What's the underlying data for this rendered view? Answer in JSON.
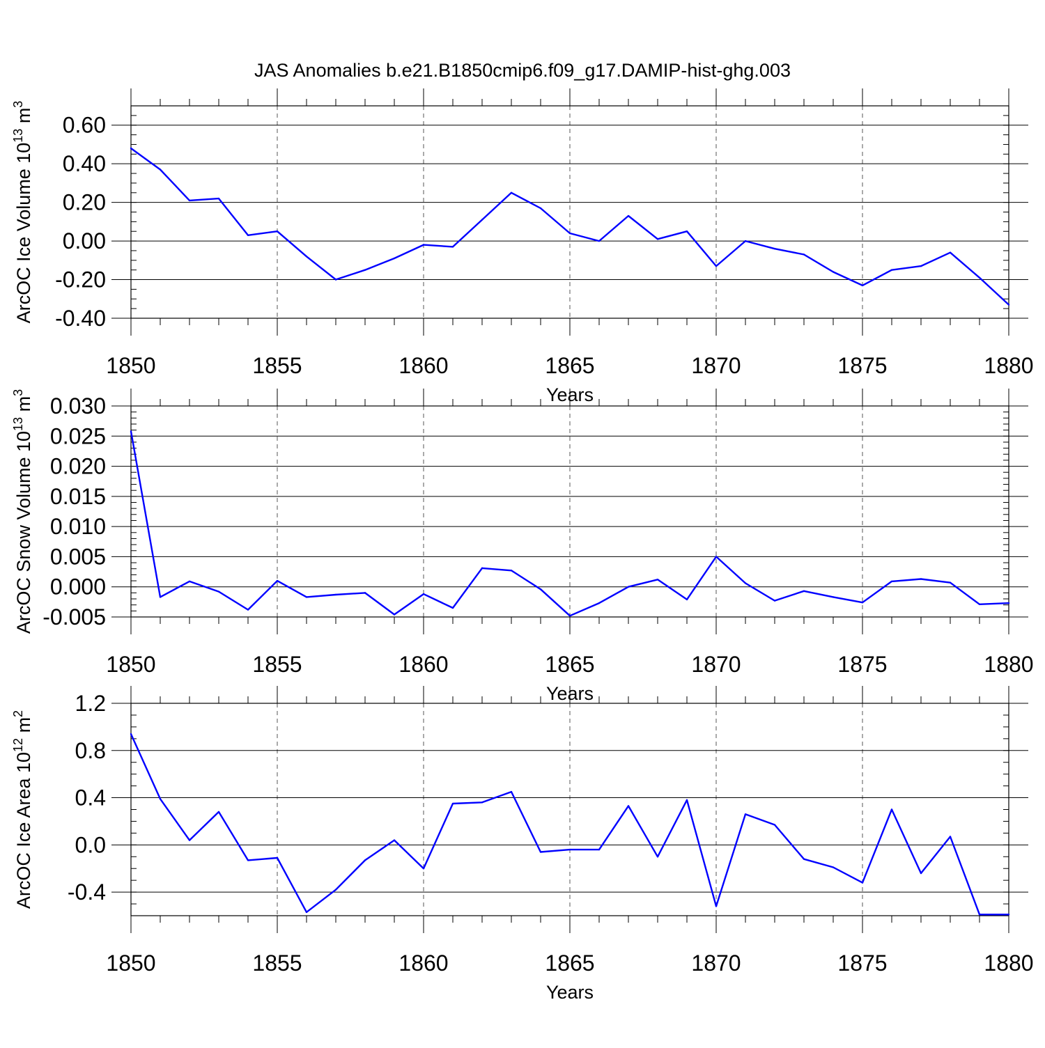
{
  "title": "JAS Anomalies b.e21.B1850cmip6.f09_g17.DAMIP-hist-ghg.003",
  "chart_data": [
    {
      "type": "line",
      "id": "ice-volume",
      "ylabel_main": "ArcOC Ice Volume 10",
      "ylabel_exp": "13",
      "ylabel_unit": " m",
      "ylabel_unit_exp": "3",
      "xlabel": "Years",
      "xlim": [
        1850,
        1880
      ],
      "ylim": [
        -0.4,
        0.7
      ],
      "x_ticks": [
        1850,
        1855,
        1860,
        1865,
        1870,
        1875,
        1880
      ],
      "x_tick_labels": [
        "1850",
        "1855",
        "1860",
        "1865",
        "1870",
        "1875",
        "1880"
      ],
      "y_ticks": [
        -0.4,
        -0.2,
        0.0,
        0.2,
        0.4,
        0.6
      ],
      "y_tick_labels": [
        "-0.40",
        "-0.20",
        "0.00",
        "0.20",
        "0.40",
        "0.60"
      ],
      "y_minor_step": 0.05,
      "color": "#0000ff",
      "x": [
        1850,
        1851,
        1852,
        1853,
        1854,
        1855,
        1856,
        1857,
        1858,
        1859,
        1860,
        1861,
        1862,
        1863,
        1864,
        1865,
        1866,
        1867,
        1868,
        1869,
        1870,
        1871,
        1872,
        1873,
        1874,
        1875,
        1876,
        1877,
        1878,
        1879,
        1880
      ],
      "values": [
        0.48,
        0.37,
        0.21,
        0.22,
        0.03,
        0.05,
        -0.08,
        -0.2,
        -0.15,
        -0.09,
        -0.02,
        -0.03,
        0.11,
        0.25,
        0.17,
        0.04,
        0.0,
        0.13,
        0.01,
        0.05,
        -0.13,
        0.0,
        -0.04,
        -0.07,
        -0.16,
        -0.23,
        -0.15,
        -0.13,
        -0.06,
        -0.19,
        -0.33
      ]
    },
    {
      "type": "line",
      "id": "snow-volume",
      "ylabel_main": "ArcOC Snow Volume 10",
      "ylabel_exp": "13",
      "ylabel_unit": " m",
      "ylabel_unit_exp": "3",
      "xlabel": "Years",
      "xlim": [
        1850,
        1880
      ],
      "ylim": [
        -0.005,
        0.03
      ],
      "x_ticks": [
        1850,
        1855,
        1860,
        1865,
        1870,
        1875,
        1880
      ],
      "x_tick_labels": [
        "1850",
        "1855",
        "1860",
        "1865",
        "1870",
        "1875",
        "1880"
      ],
      "y_ticks": [
        -0.005,
        0.0,
        0.005,
        0.01,
        0.015,
        0.02,
        0.025,
        0.03
      ],
      "y_tick_labels": [
        "-0.005",
        "0.000",
        "0.005",
        "0.010",
        "0.015",
        "0.020",
        "0.025",
        "0.030"
      ],
      "y_minor_step": 0.001,
      "color": "#0000ff",
      "x": [
        1850,
        1851,
        1852,
        1853,
        1854,
        1855,
        1856,
        1857,
        1858,
        1859,
        1860,
        1861,
        1862,
        1863,
        1864,
        1865,
        1866,
        1867,
        1868,
        1869,
        1870,
        1871,
        1872,
        1873,
        1874,
        1875,
        1876,
        1877,
        1878,
        1879,
        1880
      ],
      "values": [
        0.0258,
        -0.0017,
        0.0009,
        -0.0008,
        -0.0038,
        0.001,
        -0.0017,
        -0.0013,
        -0.001,
        -0.0046,
        -0.0012,
        -0.0035,
        0.0031,
        0.0027,
        -0.0004,
        -0.0048,
        -0.0027,
        0.0,
        0.0012,
        -0.0021,
        0.005,
        0.0006,
        -0.0023,
        -0.0007,
        -0.0017,
        -0.0026,
        0.0009,
        0.0013,
        0.0007,
        -0.0029,
        -0.0027
      ]
    },
    {
      "type": "line",
      "id": "ice-area",
      "ylabel_main": "ArcOC Ice Area 10",
      "ylabel_exp": "12",
      "ylabel_unit": " m",
      "ylabel_unit_exp": "2",
      "xlabel": "Years",
      "xlim": [
        1850,
        1880
      ],
      "ylim": [
        -0.6,
        1.2
      ],
      "x_ticks": [
        1850,
        1855,
        1860,
        1865,
        1870,
        1875,
        1880
      ],
      "x_tick_labels": [
        "1850",
        "1855",
        "1860",
        "1865",
        "1870",
        "1875",
        "1880"
      ],
      "y_ticks": [
        -0.4,
        0.0,
        0.4,
        0.8,
        1.2
      ],
      "y_tick_labels": [
        "-0.4",
        "0.0",
        "0.4",
        "0.8",
        "1.2"
      ],
      "y_minor_step": 0.1,
      "color": "#0000ff",
      "x": [
        1850,
        1851,
        1852,
        1853,
        1854,
        1855,
        1856,
        1857,
        1858,
        1859,
        1860,
        1861,
        1862,
        1863,
        1864,
        1865,
        1866,
        1867,
        1868,
        1869,
        1870,
        1871,
        1872,
        1873,
        1874,
        1875,
        1876,
        1877,
        1878,
        1879,
        1880
      ],
      "values": [
        0.94,
        0.39,
        0.04,
        0.28,
        -0.13,
        -0.11,
        -0.57,
        -0.38,
        -0.13,
        0.04,
        -0.2,
        0.35,
        0.36,
        0.45,
        -0.06,
        -0.04,
        -0.04,
        0.33,
        -0.1,
        0.38,
        -0.52,
        0.26,
        0.17,
        -0.12,
        -0.19,
        -0.32,
        0.3,
        -0.24,
        0.07,
        -0.59,
        -0.59
      ]
    }
  ]
}
